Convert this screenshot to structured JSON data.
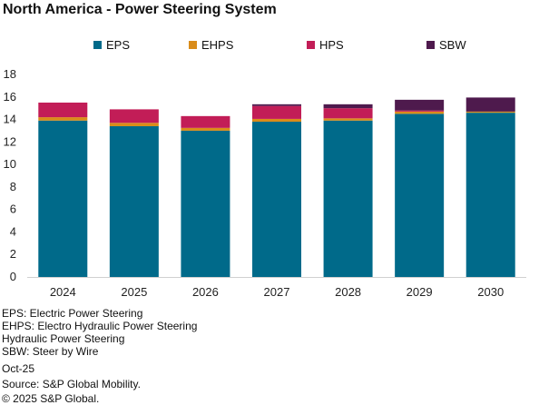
{
  "title": "North America - Power Steering System",
  "colors": {
    "EPS": "#006a8a",
    "EHPS": "#d98c1a",
    "HPS": "#c21d57",
    "SBW": "#4e1a4d",
    "axis": "#d0d0d0"
  },
  "notes": [
    "EPS: Electric Power Steering",
    "EHPS: Electro Hydraulic Power Steering",
    "Hydraulic Power Steering",
    "SBW: Steer by Wire"
  ],
  "date": "Oct-25",
  "source": "Source: S&P Global Mobility.",
  "copyright": "© 2025 S&P Global.",
  "chart_data": {
    "type": "bar",
    "stacked": true,
    "title": "North America - Power Steering System",
    "categories": [
      "2024",
      "2025",
      "2026",
      "2027",
      "2028",
      "2029",
      "2030"
    ],
    "series": [
      {
        "name": "EPS",
        "values": [
          13.9,
          13.4,
          13.0,
          13.8,
          13.9,
          14.5,
          14.6
        ]
      },
      {
        "name": "EHPS",
        "values": [
          0.3,
          0.3,
          0.25,
          0.25,
          0.2,
          0.2,
          0.1
        ]
      },
      {
        "name": "HPS",
        "values": [
          1.3,
          1.2,
          1.05,
          1.15,
          0.9,
          0.1,
          0.0
        ]
      },
      {
        "name": "SBW",
        "values": [
          0.0,
          0.0,
          0.0,
          0.15,
          0.35,
          0.95,
          1.25
        ]
      }
    ],
    "ylim": [
      0,
      18
    ],
    "yticks": [
      0,
      2,
      4,
      6,
      8,
      10,
      12,
      14,
      16,
      18
    ],
    "grid": false,
    "legend": "top"
  }
}
